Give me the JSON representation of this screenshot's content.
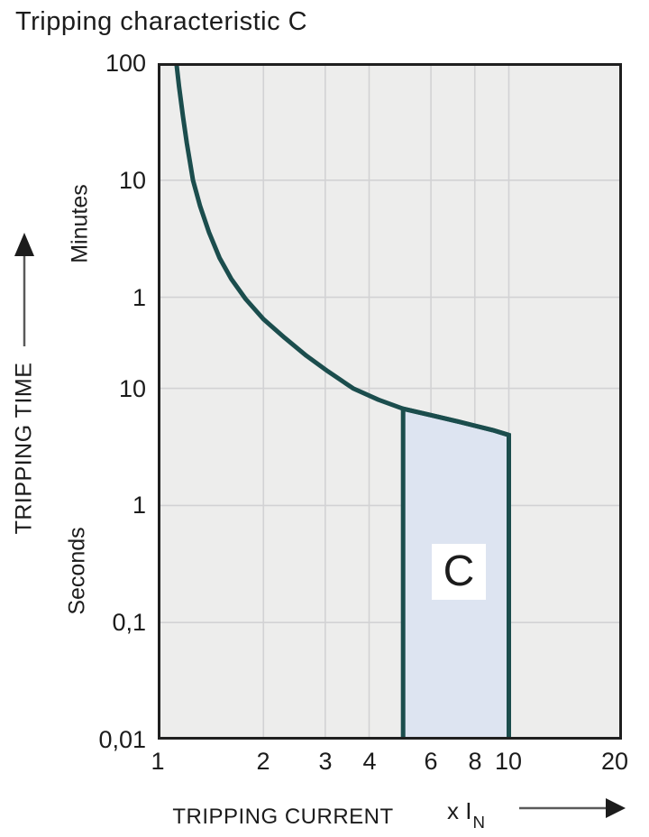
{
  "chart_data": {
    "type": "line",
    "title": "Tripping characteristic C",
    "x_axis": {
      "label": "TRIPPING CURRENT",
      "unit_prefix": "x I",
      "unit_sub": "N",
      "scale": "log",
      "min": 1,
      "max": 21,
      "ticks": [
        {
          "label": "1",
          "v": 1
        },
        {
          "label": "2",
          "v": 2
        },
        {
          "label": "3",
          "v": 3
        },
        {
          "label": "4",
          "v": 4
        },
        {
          "label": "6",
          "v": 6
        },
        {
          "label": "8",
          "v": 8
        },
        {
          "label": "10",
          "v": 10
        },
        {
          "label": "20",
          "v": 20
        }
      ],
      "gridlines": [
        2,
        3,
        4,
        6,
        8,
        10
      ]
    },
    "y_axis": {
      "label": "TRIPPING TIME",
      "unit_upper": "Minutes",
      "unit_lower": "Seconds",
      "scale": "log",
      "min_seconds": 0.01,
      "max_seconds": 6000,
      "ticks": [
        {
          "label": "100",
          "t": 6000
        },
        {
          "label": "10",
          "t": 600
        },
        {
          "label": "1",
          "t": 60
        },
        {
          "label": "10",
          "t": 10
        },
        {
          "label": "1",
          "t": 1
        },
        {
          "label": "0,1",
          "t": 0.1
        },
        {
          "label": "0,01",
          "t": 0.01
        }
      ],
      "gridlines": [
        600,
        60,
        10,
        1,
        0.1
      ]
    },
    "series": [
      {
        "name": "C tripping characteristic",
        "points": [
          [
            1.13,
            6000
          ],
          [
            1.15,
            3800
          ],
          [
            1.18,
            2100
          ],
          [
            1.21,
            1250
          ],
          [
            1.26,
            600
          ],
          [
            1.32,
            360
          ],
          [
            1.4,
            215
          ],
          [
            1.5,
            130
          ],
          [
            1.62,
            86
          ],
          [
            1.78,
            58
          ],
          [
            2.0,
            39
          ],
          [
            2.3,
            27
          ],
          [
            2.65,
            19
          ],
          [
            3.05,
            14
          ],
          [
            3.6,
            10
          ],
          [
            4.25,
            8
          ],
          [
            5,
            6.7
          ],
          [
            6,
            5.9
          ],
          [
            7,
            5.3
          ],
          [
            8,
            4.8
          ],
          [
            9,
            4.4
          ],
          [
            10,
            4.0
          ]
        ]
      }
    ],
    "region": {
      "label": "C",
      "x_range": [
        5,
        10
      ],
      "top_boundary": [
        [
          5,
          6.7
        ],
        [
          6,
          5.9
        ],
        [
          7,
          5.3
        ],
        [
          8,
          4.8
        ],
        [
          9,
          4.4
        ],
        [
          10,
          4.0
        ]
      ],
      "t_bottom": 0.01,
      "label_pos": {
        "v": 7.2,
        "t": 0.27
      }
    },
    "colors": {
      "curve": "#1b4d4d",
      "region_fill": "#dde4f1",
      "region_border": "#1b4d4d",
      "plot_bg": "#ededec",
      "gridline": "#d2d2d4",
      "plot_border": "#1f1f1f",
      "text": "#1c1c1c"
    }
  }
}
